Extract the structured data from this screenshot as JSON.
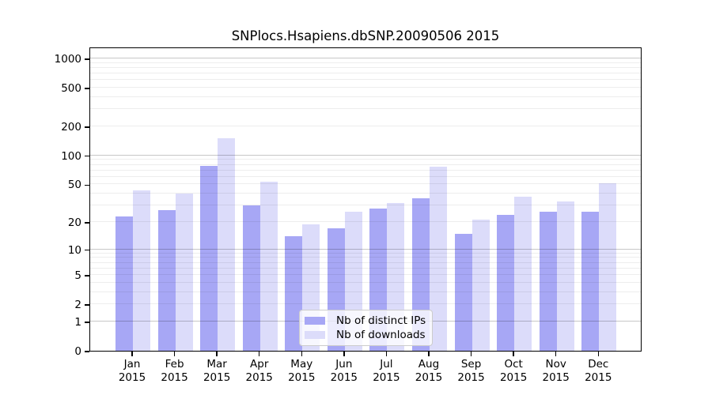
{
  "chart_data": {
    "type": "bar",
    "title": "SNPlocs.Hsapiens.dbSNP.20090506 2015",
    "categories": [
      "Jan",
      "Feb",
      "Mar",
      "Apr",
      "May",
      "Jun",
      "Jul",
      "Aug",
      "Sep",
      "Oct",
      "Nov",
      "Dec"
    ],
    "category_year": "2015",
    "series": [
      {
        "name": "Nb of distinct IPs",
        "color": "#a7a7f5",
        "values": [
          23,
          27,
          78,
          30,
          14,
          17,
          28,
          36,
          15,
          24,
          26,
          26
        ]
      },
      {
        "name": "Nb of downloads",
        "color": "#dcdcfa",
        "values": [
          43,
          40,
          150,
          53,
          19,
          26,
          32,
          77,
          21,
          37,
          33,
          51
        ]
      }
    ],
    "y_ticks": [
      0,
      1,
      2,
      5,
      10,
      20,
      50,
      100,
      200,
      500,
      1000
    ],
    "y_scale": "log10(1+x)",
    "ylim": [
      0,
      1000
    ],
    "xlabel": "",
    "ylabel": "",
    "grid": "horizontal major and minor",
    "legend_position": "lower center"
  }
}
